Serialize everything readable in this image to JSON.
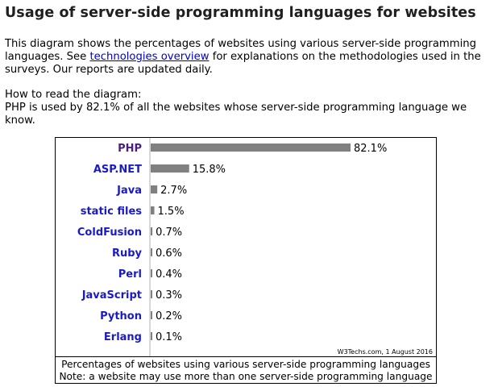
{
  "header": {
    "title": "Usage of server-side programming languages for websites"
  },
  "intro": {
    "text_before": "This diagram shows the percentages of websites using various server-side programming languages. See ",
    "link_text": "technologies overview",
    "text_after": " for explanations on the methodologies used in the surveys. Our reports are updated daily."
  },
  "howto": {
    "heading": "How to read the diagram:",
    "text": "PHP is used by 82.1% of all the websites whose server-side programming language we know."
  },
  "colors": {
    "bar": "#808080",
    "label": "#1a1ac8",
    "first_label": "#4a1f7f",
    "link": "#0000cc"
  },
  "chart_data": {
    "type": "bar",
    "orientation": "horizontal",
    "categories": [
      "PHP",
      "ASP.NET",
      "Java",
      "static files",
      "ColdFusion",
      "Ruby",
      "Perl",
      "JavaScript",
      "Python",
      "Erlang"
    ],
    "values": [
      82.1,
      15.8,
      2.7,
      1.5,
      0.7,
      0.6,
      0.4,
      0.3,
      0.2,
      0.1
    ],
    "value_labels": [
      "82.1%",
      "15.8%",
      "2.7%",
      "1.5%",
      "0.7%",
      "0.6%",
      "0.4%",
      "0.3%",
      "0.2%",
      "0.1%"
    ],
    "xlim": [
      0,
      82.1
    ],
    "unit": "%",
    "credit": "W3Techs.com, 1 August 2016",
    "caption_line1": "Percentages of websites using various server-side programming languages",
    "caption_line2": "Note: a website may use more than one server-side programming language"
  }
}
